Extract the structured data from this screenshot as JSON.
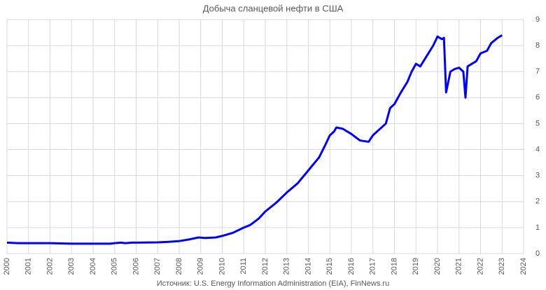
{
  "chart_data": {
    "type": "line",
    "title": "Добыча сланцевой нефти в США",
    "source": "Источник: U.S. Energy Information Administration (EIA), FinNews.ru",
    "x": [
      2000,
      2000.5,
      2001,
      2002,
      2003,
      2004,
      2004.8,
      2005,
      2005.3,
      2005.5,
      2005.8,
      2006,
      2007,
      2007.5,
      2008,
      2008.5,
      2008.9,
      2009.2,
      2009.7,
      2010,
      2010.5,
      2011,
      2011.3,
      2011.7,
      2012,
      2012.5,
      2013,
      2013.5,
      2014,
      2014.5,
      2014.8,
      2015,
      2015.2,
      2015.3,
      2015.6,
      2016,
      2016.4,
      2016.8,
      2017,
      2017.4,
      2017.6,
      2017.8,
      2018,
      2018.3,
      2018.6,
      2018.8,
      2019,
      2019.2,
      2019.5,
      2019.8,
      2020,
      2020.2,
      2020.3,
      2020.4,
      2020.6,
      2020.8,
      2021,
      2021.2,
      2021.3,
      2021.4,
      2021.6,
      2021.8,
      2022,
      2022.3,
      2022.5,
      2022.8,
      2023
    ],
    "series": [
      {
        "color": "#0000ff",
        "values": [
          0.42,
          0.4,
          0.4,
          0.4,
          0.38,
          0.38,
          0.38,
          0.4,
          0.42,
          0.4,
          0.42,
          0.42,
          0.43,
          0.45,
          0.48,
          0.55,
          0.62,
          0.6,
          0.62,
          0.68,
          0.8,
          1.0,
          1.1,
          1.35,
          1.62,
          1.95,
          2.35,
          2.7,
          3.2,
          3.7,
          4.2,
          4.55,
          4.7,
          4.85,
          4.8,
          4.6,
          4.35,
          4.3,
          4.55,
          4.85,
          5.0,
          5.6,
          5.75,
          6.2,
          6.6,
          7.0,
          7.3,
          7.2,
          7.6,
          8.0,
          8.35,
          8.25,
          8.3,
          6.2,
          7.0,
          7.1,
          7.15,
          7.0,
          6.0,
          7.2,
          7.3,
          7.4,
          7.7,
          7.8,
          8.1,
          8.3,
          8.4
        ]
      }
    ],
    "xlim": [
      2000,
      2024
    ],
    "xticks": [
      2000,
      2001,
      2002,
      2003,
      2004,
      2005,
      2006,
      2007,
      2008,
      2009,
      2010,
      2011,
      2012,
      2013,
      2014,
      2015,
      2016,
      2017,
      2018,
      2019,
      2020,
      2021,
      2022,
      2023,
      2024
    ],
    "ylim": [
      0,
      9
    ],
    "yticks": [
      0,
      1,
      2,
      3,
      4,
      5,
      6,
      7,
      8,
      9
    ],
    "grid": true
  }
}
